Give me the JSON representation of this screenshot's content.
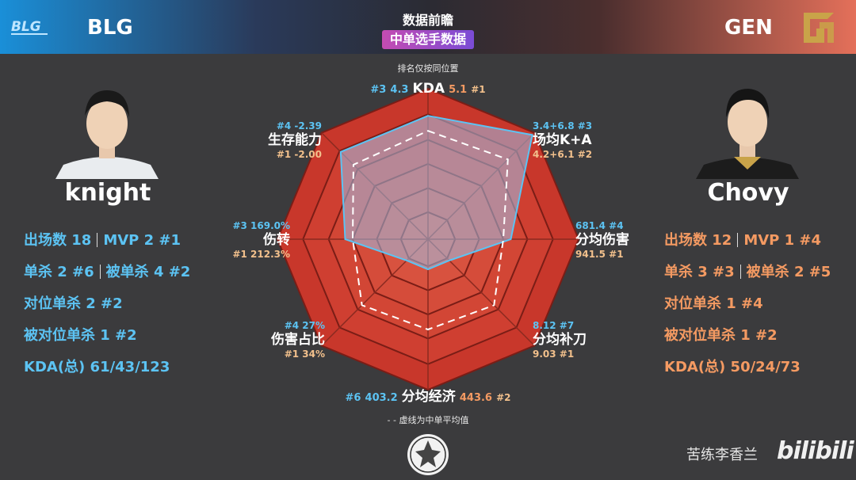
{
  "header": {
    "title": "数据前瞻",
    "subtitle": "中单选手数据",
    "rank_note": "排名仅按同位置",
    "avg_note": "- - 虚线为中单平均值"
  },
  "teams": {
    "left": {
      "name": "BLG",
      "color": "#1a8fd8"
    },
    "right": {
      "name": "GEN",
      "color": "#e4705a"
    }
  },
  "players": {
    "left": {
      "name": "knight",
      "color": "#5cc3f3",
      "stats": [
        {
          "a": "出场数 18",
          "b": "MVP 2 #1"
        },
        {
          "a": "单杀 2 #6",
          "b": "被单杀 4 #2"
        },
        {
          "a": "对位单杀 2 #2"
        },
        {
          "a": "被对位单杀 1 #2"
        },
        {
          "a": "KDA(总) 61/43/123"
        }
      ]
    },
    "right": {
      "name": "Chovy",
      "color": "#f49a62",
      "stats": [
        {
          "a": "出场数 12",
          "b": "MVP 1 #4"
        },
        {
          "a": "单杀 3 #3",
          "b": "被单杀 2 #5"
        },
        {
          "a": "对位单杀 1 #4"
        },
        {
          "a": "被对位单杀 1 #2"
        },
        {
          "a": "KDA(总) 50/24/73"
        }
      ]
    }
  },
  "radar": {
    "axes": {
      "kda": {
        "label": "KDA",
        "left_rank": "#3",
        "left_val": "4.3",
        "right_val": "5.1",
        "right_rank": "#1"
      },
      "ka": {
        "label": "场均K+A",
        "left": "3.4+6.8 #3",
        "right": "4.2+6.1 #2"
      },
      "dmg": {
        "label": "分均伤害",
        "left": "681.4 #4",
        "right": "941.5 #1"
      },
      "cs": {
        "label": "分均补刀",
        "left": "8.12 #7",
        "right": "9.03 #1"
      },
      "gold": {
        "label": "分均经济",
        "left_rank": "#6",
        "left_val": "403.2",
        "right_val": "443.6",
        "right_rank": "#2"
      },
      "share": {
        "label": "伤害占比",
        "left": "#4 27%",
        "right": "#1 34%"
      },
      "conv": {
        "label": "伤转",
        "left": "#3 169.0%",
        "right": "#1 212.3%"
      },
      "surv": {
        "label": "生存能力",
        "left": "#4 -2.39",
        "right": "#1 -2.00"
      }
    },
    "series_left": [
      0.82,
      0.98,
      0.55,
      0.2,
      0.2,
      0.2,
      0.55,
      0.82
    ],
    "series_avg": [
      0.72,
      0.75,
      0.5,
      0.62,
      0.6,
      0.62,
      0.5,
      0.7
    ],
    "series_right": [
      1,
      1,
      1,
      1,
      1,
      1,
      1,
      1
    ]
  },
  "watermark": "苦练李香兰",
  "brand": "bilibili"
}
